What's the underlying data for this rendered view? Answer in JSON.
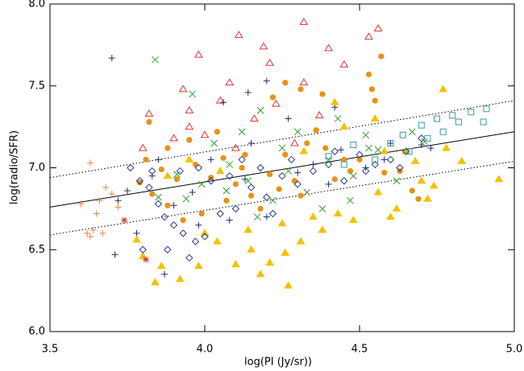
{
  "chart_data": {
    "type": "scatter",
    "xlabel": "log(PI (Jy/sr))",
    "ylabel": "log(radio/SFR)",
    "xlim": [
      3.5,
      5.0
    ],
    "ylim": [
      6.0,
      8.0
    ],
    "xticks": [
      {
        "value": 3.5,
        "label": "3.5"
      },
      {
        "value": 4.0,
        "label": "4.0"
      },
      {
        "value": 4.5,
        "label": "4.5"
      },
      {
        "value": 5.0,
        "label": "5.0"
      }
    ],
    "yticks": [
      {
        "value": 6.0,
        "label": "6.0"
      },
      {
        "value": 6.5,
        "label": "6.5"
      },
      {
        "value": 7.0,
        "label": "7.0"
      },
      {
        "value": 7.5,
        "label": "7.5"
      },
      {
        "value": 8.0,
        "label": "8.0"
      }
    ],
    "fit_lines": [
      {
        "style": "solid",
        "x": [
          3.5,
          5.0
        ],
        "values": [
          6.76,
          7.22
        ]
      },
      {
        "style": "dotted",
        "x": [
          3.5,
          5.0
        ],
        "values": [
          6.94,
          7.41
        ]
      },
      {
        "style": "dotted",
        "x": [
          3.5,
          5.0
        ],
        "values": [
          6.59,
          7.04
        ]
      }
    ],
    "series": [
      {
        "marker": "triangle",
        "filled": false,
        "color": "#dd3333",
        "x": [
          4.32,
          4.56,
          4.53,
          4.11,
          3.98,
          4.19,
          4.4,
          4.21,
          4.45,
          4.08,
          3.93,
          4.32,
          4.05,
          3.82,
          4.23,
          4.37,
          3.95,
          4.16,
          3.9,
          4.0,
          4.29,
          3.8,
          4.1,
          3.95
        ],
        "values": [
          7.89,
          7.85,
          7.8,
          7.81,
          7.69,
          7.74,
          7.73,
          7.64,
          7.63,
          7.52,
          7.48,
          7.52,
          7.41,
          7.33,
          7.39,
          7.32,
          7.25,
          7.3,
          7.18,
          7.2,
          7.15,
          7.12,
          7.12,
          7.35
        ]
      },
      {
        "marker": "plus",
        "filled": false,
        "color": "#1f2a6b",
        "x": [
          3.7,
          4.2,
          4.14,
          4.06,
          4.27,
          4.42,
          3.85,
          4.6,
          4.7,
          4.44,
          3.75,
          3.72,
          3.78,
          3.71,
          3.87,
          3.96,
          4.13,
          4.3,
          4.52,
          4.08,
          4.2,
          3.9,
          3.98,
          4.35,
          4.58,
          4.73,
          4.02,
          3.83,
          4.4,
          4.15
        ],
        "values": [
          7.67,
          7.53,
          7.46,
          7.4,
          7.3,
          7.37,
          7.05,
          7.15,
          7.14,
          7.11,
          6.86,
          6.8,
          6.6,
          6.47,
          6.35,
          6.85,
          6.93,
          6.97,
          7.0,
          6.68,
          6.7,
          6.77,
          6.65,
          7.02,
          7.05,
          7.12,
          7.05,
          6.95,
          6.9,
          7.15
        ]
      },
      {
        "marker": "circle",
        "filled": true,
        "color": "#e69215",
        "x": [
          4.57,
          4.53,
          4.54,
          4.55,
          4.31,
          4.22,
          4.26,
          4.38,
          3.82,
          3.88,
          3.95,
          4.06,
          4.12,
          3.79,
          3.83,
          3.88,
          3.93,
          3.99,
          4.02,
          4.1,
          4.15,
          4.21,
          4.26,
          4.29,
          4.33,
          4.36,
          4.42,
          4.47,
          4.5,
          4.58,
          4.63,
          4.69,
          4.67,
          3.86,
          3.97,
          4.04,
          4.18,
          4.24,
          3.91,
          4.07,
          4.39,
          4.45,
          3.81,
          4.13,
          4.31
        ],
        "values": [
          7.68,
          7.57,
          7.48,
          7.41,
          7.48,
          7.43,
          7.52,
          7.45,
          7.28,
          7.12,
          7.17,
          7.06,
          7.0,
          6.91,
          6.84,
          6.77,
          6.68,
          6.72,
          6.94,
          6.9,
          6.83,
          6.96,
          7.08,
          6.92,
          7.15,
          7.23,
          6.93,
          6.98,
          7.05,
          6.97,
          6.98,
          6.81,
          6.86,
          6.99,
          7.02,
          7.22,
          6.75,
          6.87,
          6.93,
          6.8,
          7.12,
          7.05,
          7.05,
          7.08,
          6.83
        ]
      },
      {
        "marker": "triangle",
        "filled": true,
        "color": "#f2c200",
        "x": [
          4.77,
          4.95,
          4.83,
          4.74,
          4.72,
          4.7,
          4.62,
          4.56,
          4.48,
          4.43,
          4.38,
          4.31,
          4.26,
          4.21,
          4.15,
          4.1,
          4.04,
          3.98,
          3.92,
          3.86,
          3.84,
          3.8,
          3.78,
          4.0,
          4.14,
          4.25,
          4.35,
          3.95,
          4.45,
          4.55,
          4.42,
          4.32,
          4.05,
          3.88,
          4.58,
          4.65,
          4.68,
          4.78,
          4.6,
          4.18,
          4.27
        ],
        "values": [
          7.48,
          6.93,
          7.04,
          6.89,
          6.81,
          6.92,
          6.75,
          6.85,
          6.68,
          6.72,
          6.62,
          6.55,
          6.48,
          6.42,
          6.5,
          6.41,
          6.55,
          6.4,
          6.32,
          6.4,
          6.3,
          6.46,
          6.56,
          6.6,
          6.62,
          6.66,
          6.7,
          7.05,
          7.25,
          7.3,
          7.4,
          7.1,
          6.98,
          6.95,
          7.1,
          7.1,
          7.04,
          7.12,
          6.7,
          6.35,
          6.28
        ]
      },
      {
        "marker": "cross",
        "filled": false,
        "color": "#2ca02c",
        "x": [
          3.84,
          3.96,
          4.18,
          4.43,
          4.52,
          4.67,
          4.56,
          4.4,
          4.33,
          4.27,
          4.22,
          4.14,
          4.07,
          3.99,
          3.91,
          3.85,
          4.03,
          4.12,
          4.25,
          4.48,
          4.62,
          4.38,
          4.17,
          4.08,
          3.94,
          4.47,
          4.3,
          4.53,
          4.71
        ],
        "values": [
          7.66,
          7.45,
          7.35,
          7.3,
          7.2,
          7.22,
          7.11,
          7.05,
          6.85,
          6.98,
          6.8,
          6.92,
          6.86,
          6.9,
          6.96,
          6.82,
          7.15,
          7.22,
          7.12,
          6.95,
          6.92,
          6.75,
          6.7,
          7.02,
          6.81,
          6.8,
          7.22,
          7.12,
          7.16
        ]
      },
      {
        "marker": "diamond",
        "filled": false,
        "color": "#2a3a8c",
        "x": [
          3.76,
          3.79,
          3.82,
          3.85,
          3.87,
          3.9,
          3.93,
          3.97,
          3.8,
          3.88,
          3.95,
          4.0,
          4.05,
          4.1,
          4.15,
          4.2,
          4.25,
          4.3,
          4.35,
          4.4,
          4.45,
          4.5,
          4.55,
          4.6,
          4.65,
          4.7,
          3.92,
          3.98,
          4.02,
          4.08,
          4.12,
          4.18,
          4.28,
          4.42,
          3.83,
          4.22,
          4.52,
          4.63
        ],
        "values": [
          7.0,
          6.92,
          6.88,
          6.78,
          6.7,
          6.65,
          6.6,
          6.55,
          6.5,
          6.5,
          6.45,
          6.58,
          6.72,
          6.75,
          6.88,
          6.82,
          6.95,
          6.9,
          6.98,
          7.02,
          6.92,
          7.08,
          7.02,
          7.05,
          7.1,
          7.18,
          6.98,
          7.0,
          6.92,
          6.95,
          7.05,
          7.0,
          7.05,
          7.1,
          6.98,
          6.72,
          6.98,
          7.0
        ]
      },
      {
        "marker": "square",
        "filled": false,
        "color": "#3a9a9a",
        "x": [
          4.91,
          4.86,
          4.8,
          4.75,
          4.7,
          4.77,
          4.72,
          4.64,
          4.6,
          4.48,
          4.9,
          4.55,
          4.66,
          4.82,
          4.4,
          4.45
        ],
        "values": [
          7.36,
          7.34,
          7.32,
          7.3,
          7.26,
          7.22,
          7.18,
          7.2,
          7.15,
          7.14,
          7.28,
          7.05,
          7.1,
          7.28,
          7.07,
          7.02
        ]
      },
      {
        "marker": "plus",
        "filled": false,
        "color": "#f08040",
        "x": [
          3.62,
          3.63,
          3.64,
          3.6,
          3.66,
          3.68,
          3.7,
          3.63,
          3.67,
          3.72,
          3.65
        ],
        "values": [
          6.6,
          6.58,
          6.62,
          6.78,
          6.8,
          6.88,
          6.84,
          7.03,
          6.6,
          6.76,
          6.72
        ]
      },
      {
        "marker": "asterisk",
        "filled": false,
        "color": "#cc3333",
        "x": [
          3.81,
          3.74
        ],
        "values": [
          6.44,
          6.68
        ]
      }
    ]
  }
}
